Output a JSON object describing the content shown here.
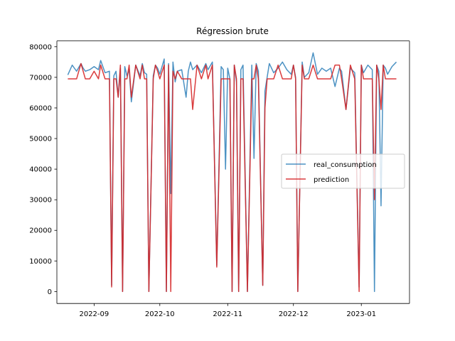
{
  "chart_data": {
    "type": "line",
    "title": "Régression brute",
    "xlabel": "",
    "ylabel": "",
    "grid": false,
    "legend_position": "center-right",
    "x_ticks": [
      "2022-09",
      "2022-10",
      "2022-11",
      "2022-12",
      "2023-01"
    ],
    "y_ticks": [
      "0",
      "10000",
      "20000",
      "30000",
      "40000",
      "50000",
      "60000",
      "70000",
      "80000"
    ],
    "xlim": [
      "2022-08-15",
      "2023-01-23"
    ],
    "ylim": [
      -3900,
      81900
    ],
    "x": [
      "2022-08-20",
      "2022-08-22",
      "2022-08-24",
      "2022-08-26",
      "2022-08-27",
      "2022-08-28",
      "2022-08-30",
      "2022-09-01",
      "2022-09-03",
      "2022-09-04",
      "2022-09-06",
      "2022-09-08",
      "2022-09-09",
      "2022-09-10",
      "2022-09-11",
      "2022-09-12",
      "2022-09-13",
      "2022-09-14",
      "2022-09-15",
      "2022-09-16",
      "2022-09-17",
      "2022-09-18",
      "2022-09-20",
      "2022-09-22",
      "2022-09-23",
      "2022-09-24",
      "2022-09-25",
      "2022-09-26",
      "2022-09-28",
      "2022-09-29",
      "2022-09-30",
      "2022-10-01",
      "2022-10-03",
      "2022-10-04",
      "2022-10-05",
      "2022-10-06",
      "2022-10-07",
      "2022-10-08",
      "2022-10-09",
      "2022-10-11",
      "2022-10-13",
      "2022-10-14",
      "2022-10-15",
      "2022-10-16",
      "2022-10-18",
      "2022-10-20",
      "2022-10-22",
      "2022-10-23",
      "2022-10-25",
      "2022-10-27",
      "2022-10-29",
      "2022-10-30",
      "2022-10-31",
      "2022-11-01",
      "2022-11-02",
      "2022-11-03",
      "2022-11-04",
      "2022-11-05",
      "2022-11-06",
      "2022-11-07",
      "2022-11-08",
      "2022-11-10",
      "2022-11-12",
      "2022-11-13",
      "2022-11-14",
      "2022-11-15",
      "2022-11-17",
      "2022-11-18",
      "2022-11-19",
      "2022-11-20",
      "2022-11-22",
      "2022-11-24",
      "2022-11-26",
      "2022-11-28",
      "2022-11-30",
      "2022-12-01",
      "2022-12-02",
      "2022-12-03",
      "2022-12-05",
      "2022-12-06",
      "2022-12-08",
      "2022-12-10",
      "2022-12-12",
      "2022-12-14",
      "2022-12-16",
      "2022-12-18",
      "2022-12-20",
      "2022-12-22",
      "2022-12-23",
      "2022-12-25",
      "2022-12-27",
      "2022-12-29",
      "2022-12-31",
      "2023-01-01",
      "2023-01-02",
      "2023-01-04",
      "2023-01-06",
      "2023-01-07",
      "2023-01-08",
      "2023-01-09",
      "2023-01-10",
      "2023-01-11",
      "2023-01-12",
      "2023-01-13",
      "2023-01-15",
      "2023-01-17"
    ],
    "series": [
      {
        "name": "real_consumption",
        "color": "#1f77b4",
        "values": [
          70800,
          74000,
          72000,
          74500,
          73000,
          72000,
          72500,
          73500,
          72500,
          75500,
          71500,
          72000,
          2000,
          70500,
          72000,
          63500,
          73000,
          0,
          73500,
          70500,
          72500,
          62000,
          74000,
          70500,
          74500,
          71500,
          71000,
          0,
          70500,
          74000,
          73000,
          71000,
          76000,
          0,
          74500,
          32000,
          75000,
          68500,
          72000,
          72500,
          63500,
          72000,
          75000,
          72500,
          74000,
          71500,
          74500,
          72500,
          75000,
          8500,
          73500,
          72500,
          40000,
          73000,
          69500,
          0,
          74000,
          68500,
          0,
          72500,
          74000,
          0,
          74000,
          43500,
          74500,
          72000,
          2000,
          65500,
          70000,
          74500,
          71500,
          73000,
          75000,
          72500,
          71000,
          74000,
          70000,
          0,
          75000,
          70000,
          71500,
          78000,
          71000,
          73000,
          72000,
          73000,
          67000,
          73000,
          72000,
          59500,
          73000,
          71500,
          1500,
          74000,
          71500,
          74000,
          72500,
          0,
          74000,
          72000,
          28000,
          74000,
          73000,
          71000,
          73500,
          75000
        ],
        "draw_opacity": 0.8
      },
      {
        "name": "prediction",
        "color": "#d62728",
        "values": [
          69500,
          69500,
          69500,
          74500,
          72000,
          69500,
          69500,
          72000,
          69500,
          74000,
          69500,
          69500,
          1500,
          69500,
          69500,
          63500,
          74000,
          0,
          69500,
          69500,
          74000,
          63500,
          74000,
          69500,
          74000,
          69500,
          69500,
          0,
          69500,
          74000,
          72000,
          69500,
          74000,
          0,
          74000,
          0,
          72000,
          69500,
          72000,
          69500,
          69500,
          69500,
          69500,
          59500,
          74000,
          69500,
          74000,
          69500,
          74000,
          8000,
          69500,
          69500,
          69500,
          69500,
          69500,
          0,
          74000,
          69500,
          0,
          69500,
          69500,
          0,
          69500,
          69500,
          74000,
          69500,
          2000,
          60000,
          69500,
          69500,
          69500,
          74000,
          69500,
          69500,
          69500,
          74000,
          69500,
          0,
          74000,
          69500,
          69500,
          74000,
          69500,
          69500,
          69500,
          69500,
          74000,
          74000,
          69500,
          59500,
          74000,
          69500,
          0,
          74000,
          69500,
          69500,
          69500,
          30000,
          74000,
          69500,
          59500,
          74000,
          69500,
          69500,
          69500,
          69500
        ],
        "draw_opacity": 0.9
      }
    ]
  }
}
